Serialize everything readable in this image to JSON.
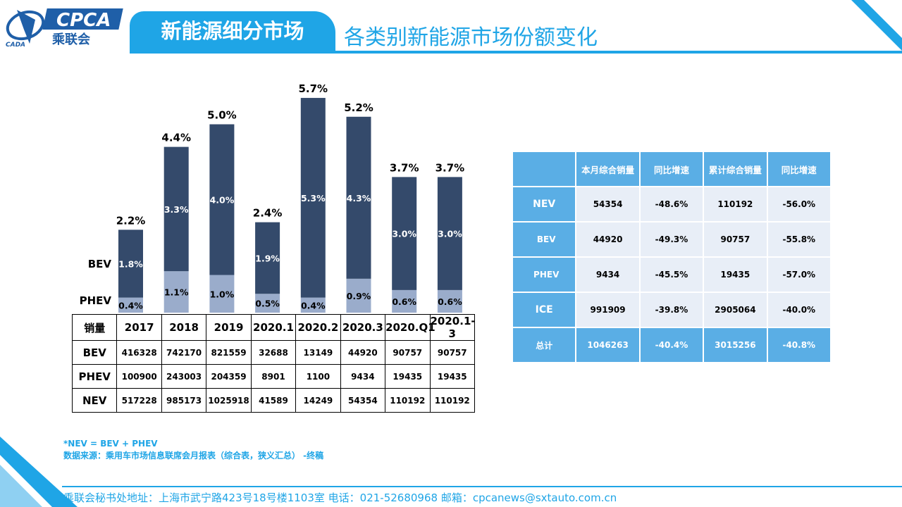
{
  "brand": {
    "logo_text": "CPCA",
    "logo_cn": "乘联会",
    "logo_small": "CADA"
  },
  "header": {
    "tab_title": "新能源细分市场",
    "subtitle": "各类别新能源市场份额变化"
  },
  "colors": {
    "accent": "#1fa5e6",
    "bev_bar": "#344a6b",
    "phev_bar": "#9aaccb",
    "table_header": "#5aaee5",
    "table_cell": "#e8eef7"
  },
  "chart_data": {
    "type": "bar",
    "stacked": true,
    "categories": [
      "2017",
      "2018",
      "2019",
      "2020.1",
      "2020.2",
      "2020.3",
      "2020.Q1",
      "2020.1-3"
    ],
    "series": [
      {
        "name": "PHEV",
        "values": [
          0.4,
          1.1,
          1.0,
          0.5,
          0.4,
          0.9,
          0.6,
          0.6
        ],
        "labels": [
          "0.4%",
          "1.1%",
          "1.0%",
          "0.5%",
          "0.4%",
          "0.9%",
          "0.6%",
          "0.6%"
        ]
      },
      {
        "name": "BEV",
        "values": [
          1.8,
          3.3,
          4.0,
          1.9,
          5.3,
          4.3,
          3.0,
          3.0
        ],
        "labels": [
          "1.8%",
          "3.3%",
          "4.0%",
          "1.9%",
          "5.3%",
          "4.3%",
          "3.0%",
          "3.0%"
        ]
      }
    ],
    "totals": [
      2.2,
      4.4,
      5.0,
      2.4,
      5.7,
      5.2,
      3.7,
      3.7
    ],
    "total_labels": [
      "2.2%",
      "4.4%",
      "5.0%",
      "2.4%",
      "5.7%",
      "5.2%",
      "3.7%",
      "3.7%"
    ],
    "ylim": [
      0,
      5.7
    ],
    "grid": false
  },
  "sales_table": {
    "corner": "销量",
    "columns": [
      "2017",
      "2018",
      "2019",
      "2020.1",
      "2020.2",
      "2020.3",
      "2020.Q1",
      "2020.1-3"
    ],
    "rows": [
      {
        "label": "BEV",
        "values": [
          "416328",
          "742170",
          "821559",
          "32688",
          "13149",
          "44920",
          "90757",
          "90757"
        ]
      },
      {
        "label": "PHEV",
        "values": [
          "100900",
          "243003",
          "204359",
          "8901",
          "1100",
          "9434",
          "19435",
          "19435"
        ]
      },
      {
        "label": "NEV",
        "values": [
          "517228",
          "985173",
          "1025918",
          "41589",
          "14249",
          "54354",
          "110192",
          "110192"
        ]
      }
    ]
  },
  "summary_table": {
    "headers": [
      "",
      "本月综合销量",
      "同比增速",
      "累计综合销量",
      "同比增速"
    ],
    "rows": [
      {
        "label": "NEV",
        "values": [
          "54354",
          "-48.6%",
          "110192",
          "-56.0%"
        ]
      },
      {
        "label": "BEV",
        "values": [
          "44920",
          "-49.3%",
          "90757",
          "-55.8%"
        ]
      },
      {
        "label": "PHEV",
        "values": [
          "9434",
          "-45.5%",
          "19435",
          "-57.0%"
        ]
      },
      {
        "label": "ICE",
        "values": [
          "991909",
          "-39.8%",
          "2905064",
          "-40.0%"
        ]
      }
    ],
    "total": {
      "label": "总计",
      "values": [
        "1046263",
        "-40.4%",
        "3015256",
        "-40.8%"
      ]
    }
  },
  "notes": {
    "line1": "*NEV = BEV + PHEV",
    "line2": "数据来源：乘用车市场信息联席会月报表（综合表，狭义汇总） -终稿"
  },
  "footer": {
    "text": "乘联会秘书处地址：上海市武宁路423号18号楼1103室  电话：021-52680968  邮箱：cpcanews@sxtauto.com.cn"
  }
}
